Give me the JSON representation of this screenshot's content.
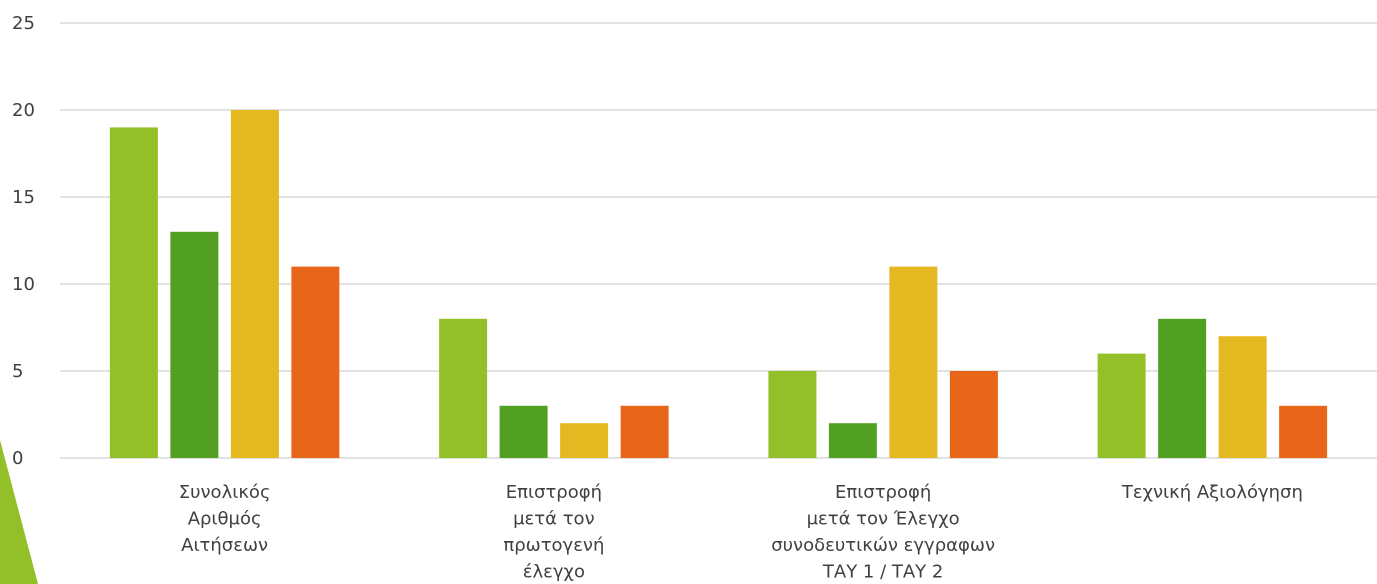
{
  "chart_data": {
    "type": "bar",
    "categories": [
      [
        "Συνολικός",
        "Αριθμός",
        "Αιτήσεων"
      ],
      [
        "Επιστροφή",
        "μετά τον",
        "πρωτογενή",
        "έλεγχο"
      ],
      [
        "Επιστροφή",
        "μετά τον Έλεγχο",
        "συνοδευτικών εγγραφων",
        "ΤΑΥ 1 / ΤΑΥ 2"
      ],
      [
        "Τεχνική Αξιολόγηση"
      ]
    ],
    "series": [
      {
        "color": "#93c028",
        "values": [
          19,
          8,
          5,
          6
        ]
      },
      {
        "color": "#52a021",
        "values": [
          13,
          3,
          2,
          8
        ]
      },
      {
        "color": "#e4b820",
        "values": [
          20,
          2,
          11,
          7
        ]
      },
      {
        "color": "#e8661a",
        "values": [
          11,
          3,
          5,
          3
        ]
      }
    ],
    "ylim": [
      0,
      25
    ],
    "yticks": [
      0,
      5,
      10,
      15,
      20,
      25
    ],
    "grid": true,
    "legend": "none"
  },
  "decoration": {
    "accent_color": "#93c028"
  }
}
